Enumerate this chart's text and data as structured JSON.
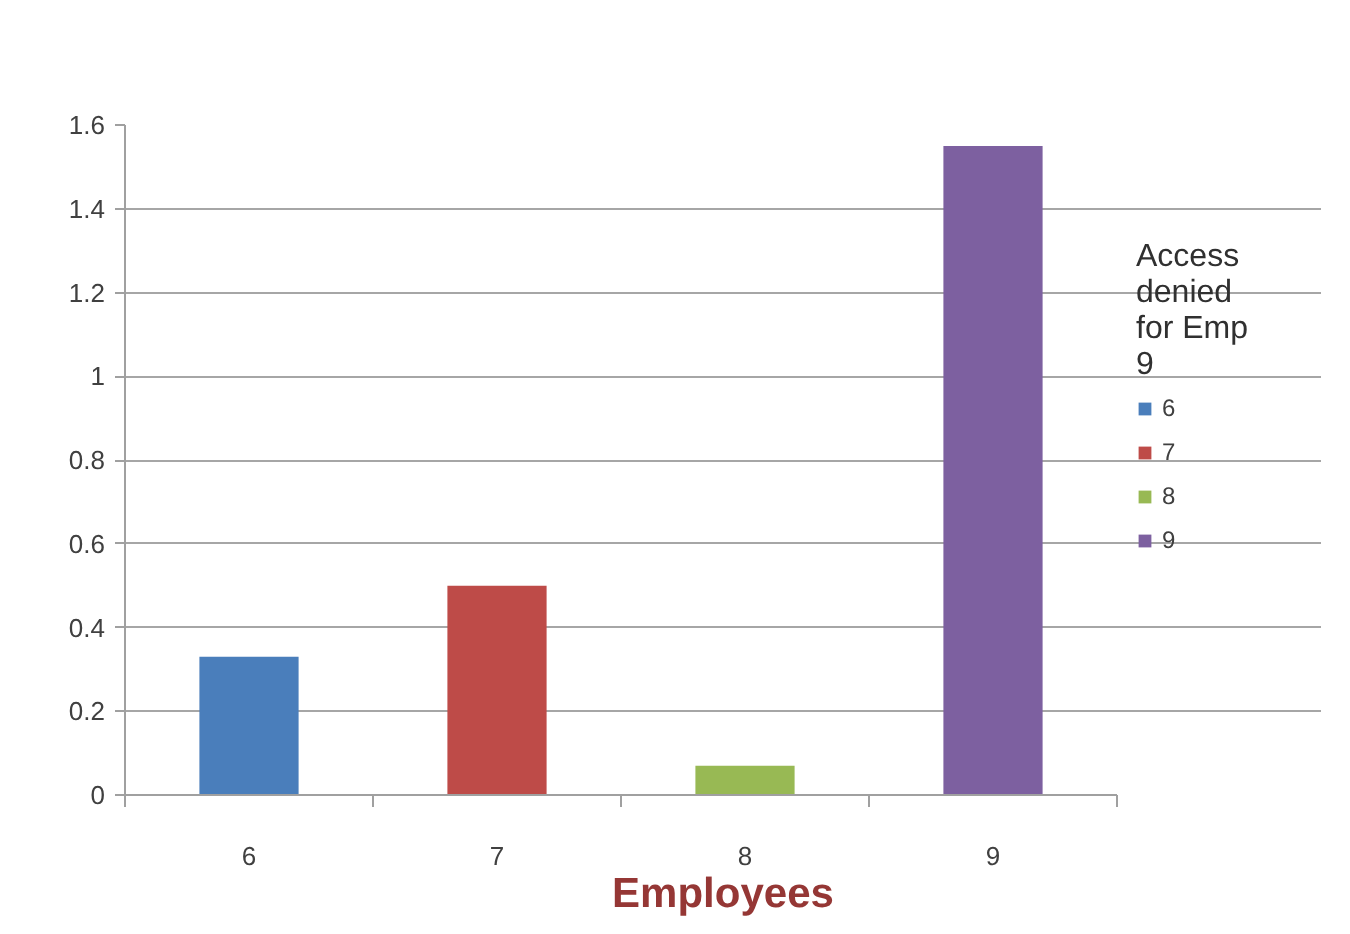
{
  "chart_data": {
    "type": "bar",
    "categories": [
      "6",
      "7",
      "8",
      "9"
    ],
    "series": [
      {
        "name": "6",
        "color": "#4a7ebb",
        "values": [
          0.33,
          null,
          null,
          null
        ]
      },
      {
        "name": "7",
        "color": "#be4b48",
        "values": [
          null,
          0.5,
          null,
          null
        ]
      },
      {
        "name": "8",
        "color": "#98b954",
        "values": [
          null,
          null,
          0.07,
          null
        ]
      },
      {
        "name": "9",
        "color": "#7d60a0",
        "values": [
          null,
          null,
          null,
          1.55
        ]
      }
    ],
    "xlabel": "Employees",
    "legend_title": "Access denied for Emp 9",
    "legend": "right",
    "ylim": [
      0,
      1.6
    ],
    "yticks": [
      0,
      0.2,
      0.4,
      0.6,
      0.8,
      1,
      1.2,
      1.4,
      1.6
    ],
    "grid": "y"
  }
}
